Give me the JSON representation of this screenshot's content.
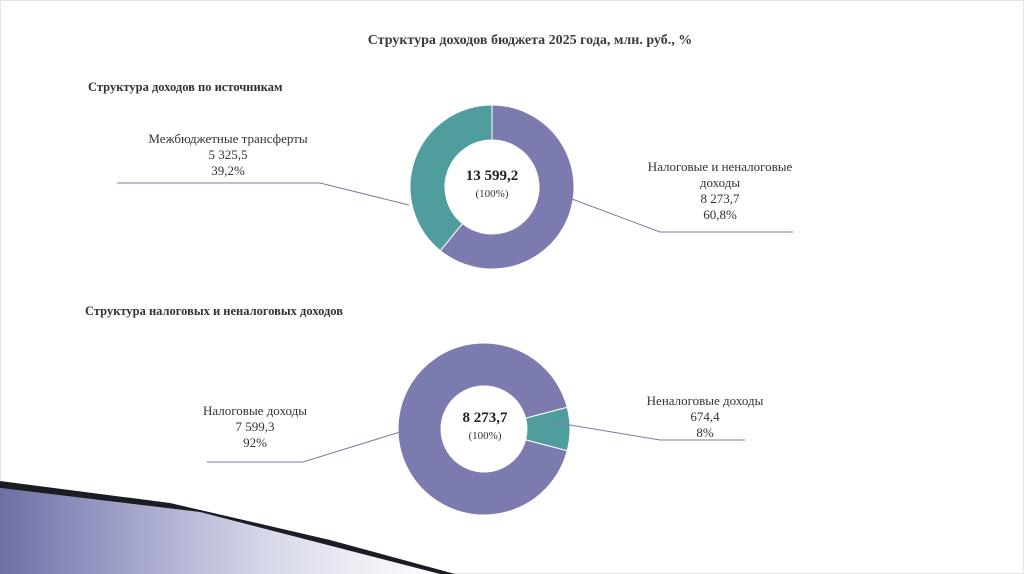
{
  "title": "Структура доходов бюджета 2025 года,  млн. руб., %",
  "colors": {
    "primary": "#7b7bb0",
    "secondary": "#4f9e9d",
    "leader": "#7a7aa8"
  },
  "chart_data": [
    {
      "type": "pie",
      "title": "Структура доходов по источникам",
      "center_value": "13 599,2",
      "center_share": "(100%)",
      "slices": [
        {
          "name": "Налоговые и неналоговые доходы",
          "name_lines": [
            "Налоговые и неналоговые",
            "доходы"
          ],
          "value": 8273.7,
          "value_label": "8 273,7",
          "percent": 60.8,
          "percent_label": "60,8%",
          "color": "#7b7bb0"
        },
        {
          "name": "Межбюджетные трансферты",
          "name_lines": [
            "Межбюджетные трансферты"
          ],
          "value": 5325.5,
          "value_label": "5 325,5",
          "percent": 39.2,
          "percent_label": "39,2%",
          "color": "#4f9e9d"
        }
      ]
    },
    {
      "type": "pie",
      "title": "Структура налоговых и неналоговых доходов",
      "center_value": "8 273,7",
      "center_share": "(100%)",
      "slices": [
        {
          "name": "Налоговые доходы",
          "name_lines": [
            "Налоговые доходы"
          ],
          "value": 7599.3,
          "value_label": "7 599,3",
          "percent": 92,
          "percent_label": "92%",
          "color": "#7b7bb0"
        },
        {
          "name": "Неналоговые доходы",
          "name_lines": [
            "Неналоговые доходы"
          ],
          "value": 674.4,
          "value_label": "674,4",
          "percent": 8,
          "percent_label": "8%",
          "color": "#4f9e9d"
        }
      ]
    }
  ]
}
